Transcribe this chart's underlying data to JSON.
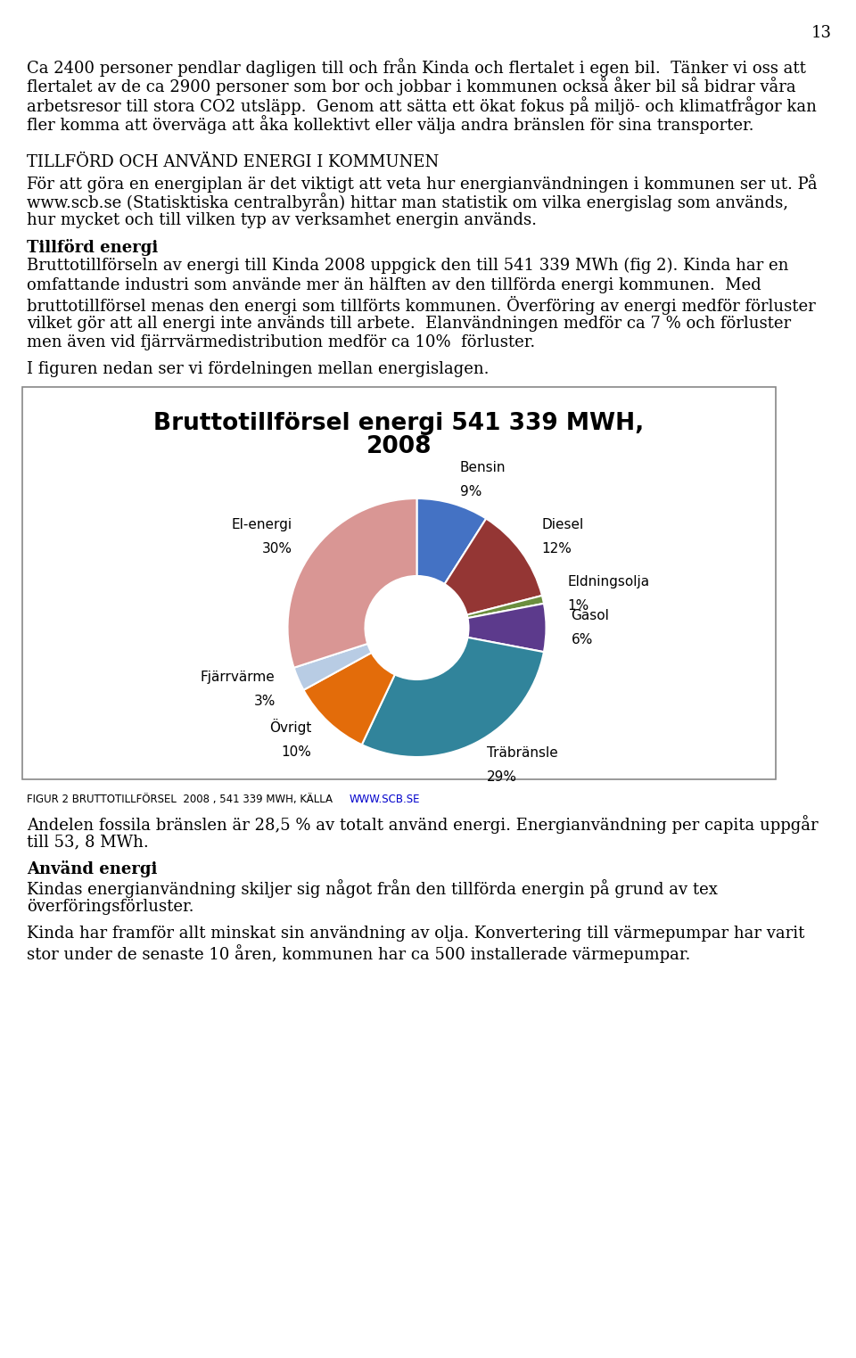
{
  "page_number": "13",
  "para1_lines": [
    "Ca 2400 personer pendlar dagligen till och från Kinda och flertalet i egen bil.  Tänker vi oss att",
    "flertalet av de ca 2900 personer som bor och jobbar i kommunen också åker bil så bidrar våra",
    "arbetsresor till stora CO2 utsläpp.  Genom att sätta ett ökat fokus på miljö- och klimatfrågor kan",
    "fler komma att överväga att åka kollektivt eller välja andra bränslen för sina transporter."
  ],
  "section_title": "TILLFÖRD OCH ANVÄND ENERGI I KOMMUNEN",
  "para2_lines": [
    "För att göra en energiplan är det viktigt att veta hur energianvändningen i kommunen ser ut. På",
    "www.scb.se (Statisktiska centralbyrån) hittar man statistik om vilka energislag som används,",
    "hur mycket och till vilken typ av verksamhet energin används."
  ],
  "bold_heading": "Tillförd energi",
  "para3_lines": [
    "Bruttotillförseln av energi till Kinda 2008 uppgick den till 541 339 MWh (fig 2). Kinda har en",
    "omfattande industri som använde mer än hälften av den tillförda energi kommunen.  Med",
    "bruttotillförsel menas den energi som tillförts kommunen. Överföring av energi medför förluster",
    "vilket gör att all energi inte används till arbete.  Elanvändningen medför ca 7 % och förluster",
    "men även vid fjärrvärmedistribution medför ca 10%  förluster."
  ],
  "para4": "I figuren nedan ser vi fördelningen mellan energislagen.",
  "chart_title_line1": "Bruttotillförsel energi 541 339 MWH,",
  "chart_title_line2": "2008",
  "slices": [
    {
      "label": "Bensin",
      "pct": "9%",
      "value": 9,
      "color": "#4472C4"
    },
    {
      "label": "Diesel",
      "pct": "12%",
      "value": 12,
      "color": "#943634"
    },
    {
      "label": "Eldningsolja",
      "pct": "1%",
      "value": 1,
      "color": "#6B8E3E"
    },
    {
      "label": "Gasol",
      "pct": "6%",
      "value": 6,
      "color": "#5C3A8C"
    },
    {
      "label": "Träbränsle",
      "pct": "29%",
      "value": 29,
      "color": "#31849B"
    },
    {
      "label": "Övrigt",
      "pct": "10%",
      "value": 10,
      "color": "#E36C0A"
    },
    {
      "label": "Fjärrvärme",
      "pct": "3%",
      "value": 3,
      "color": "#B8CCE4"
    },
    {
      "label": "El-energi",
      "pct": "30%",
      "value": 30,
      "color": "#D99694"
    }
  ],
  "fig_caption": "FIGUR 2 BRUTTOTILLFÖRSEL  2008 , 541 339 MWH, KÄLLA ",
  "fig_caption_link": "WWW.SCB.SE",
  "para5_lines": [
    "Andelen fossila bränslen är 28,5 % av totalt använd energi. Energianvändning per capita uppgår",
    "till 53, 8 MWh."
  ],
  "bold_heading2": "Använd energi",
  "para6_lines": [
    "Kindas energianvändning skiljer sig något från den tillförda energin på grund av tex",
    "överföringsförluster."
  ],
  "para7_lines": [
    "Kinda har framför allt minskat sin användning av olja. Konvertering till värmepumpar har varit",
    "stor under de senaste 10 åren, kommunen har ca 500 installerade värmepumpar."
  ],
  "bg_color": "#ffffff"
}
